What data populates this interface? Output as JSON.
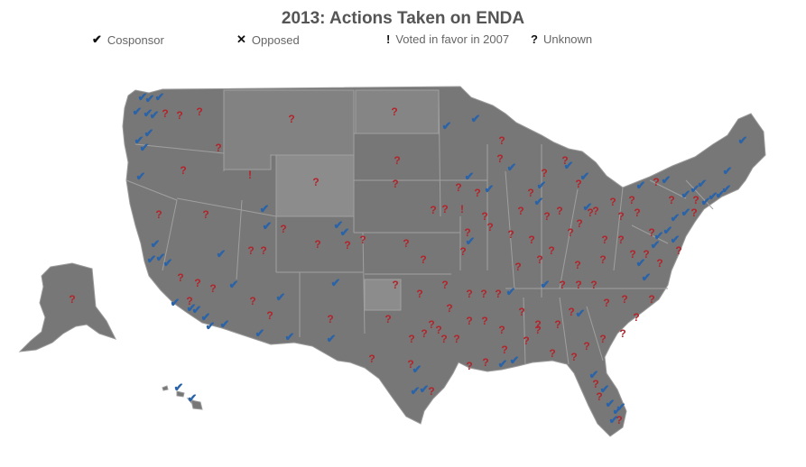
{
  "title": "2013: Actions Taken on ENDA",
  "legend": [
    {
      "symbol": "✔",
      "label": "Cosponsor"
    },
    {
      "symbol": "✕",
      "label": "Opposed"
    },
    {
      "symbol": "!",
      "label": "Voted in favor in 2007"
    },
    {
      "symbol": "?",
      "label": "Unknown"
    }
  ],
  "colors": {
    "cosponsor": "#2a63a8",
    "unknown": "#b3242b",
    "voted_2007": "#b3242b",
    "opposed": "#b3242b",
    "map_fill": "#777777",
    "map_fill_light": "#8c8c8c",
    "map_border": "#a0a0a0"
  },
  "icons": {
    "cosponsor": "checkmark-icon",
    "opposed": "x-icon",
    "voted_2007": "exclamation-icon",
    "unknown": "question-icon"
  }
}
